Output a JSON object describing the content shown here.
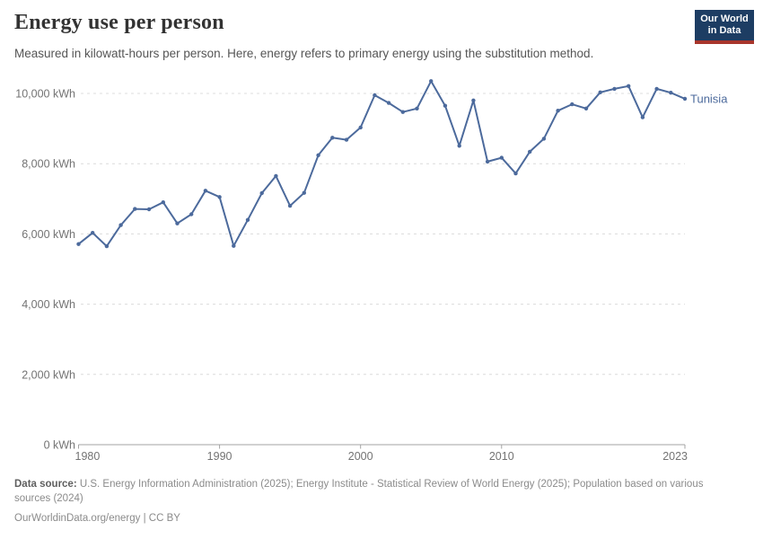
{
  "header": {
    "title": "Energy use per person",
    "subtitle": "Measured in kilowatt-hours per person. Here, energy refers to primary energy using the substitution method.",
    "logo": {
      "line1": "Our World",
      "line2": "in Data"
    }
  },
  "chart_data": {
    "type": "line",
    "title": "Energy use per person",
    "entity": "Tunisia",
    "unit": "kWh",
    "x": [
      1980,
      1981,
      1982,
      1983,
      1984,
      1985,
      1986,
      1987,
      1988,
      1989,
      1990,
      1991,
      1992,
      1993,
      1994,
      1995,
      1996,
      1997,
      1998,
      1999,
      2000,
      2001,
      2002,
      2003,
      2004,
      2005,
      2006,
      2007,
      2008,
      2009,
      2010,
      2011,
      2012,
      2013,
      2014,
      2015,
      2016,
      2017,
      2018,
      2019,
      2020,
      2021,
      2022,
      2023
    ],
    "series": [
      {
        "name": "Tunisia",
        "values": [
          5710,
          6030,
          5650,
          6250,
          6710,
          6700,
          6900,
          6300,
          6560,
          7230,
          7050,
          5660,
          6400,
          7160,
          7650,
          6800,
          7170,
          8240,
          8740,
          8680,
          9030,
          9950,
          9730,
          9470,
          9570,
          10350,
          9650,
          8510,
          9800,
          8060,
          8170,
          7720,
          8340,
          8710,
          9510,
          9690,
          9570,
          10030,
          10130,
          10210,
          9320,
          10130,
          10020,
          9850
        ]
      }
    ],
    "xlim": [
      1980,
      2023
    ],
    "ylim": [
      0,
      10000
    ],
    "xticks": [
      1980,
      1990,
      2000,
      2010,
      2023
    ],
    "yticks": [
      0,
      2000,
      4000,
      6000,
      8000,
      10000
    ],
    "ytick_labels": [
      "0 kWh",
      "2,000 kWh",
      "4,000 kWh",
      "6,000 kWh",
      "8,000 kWh",
      "10,000 kWh"
    ],
    "grid": true,
    "legend_position": "end-of-line",
    "line_color": "#4c6a9c",
    "grid_color": "#dcdcdc",
    "axis_color": "#a3a3a3",
    "tick_label_color": "#737373"
  },
  "footer": {
    "source_label": "Data source:",
    "source_text": " U.S. Energy Information Administration (2025); Energy Institute - Statistical Review of World Energy (2025); Population based on various sources (2024)",
    "link_text": "OurWorldinData.org/energy | CC BY"
  },
  "colors": {
    "logo_background": "#1d3d63",
    "logo_accent": "#a8362c",
    "title": "#333333",
    "subtitle": "#555555",
    "footer": "#8b8b8b"
  }
}
